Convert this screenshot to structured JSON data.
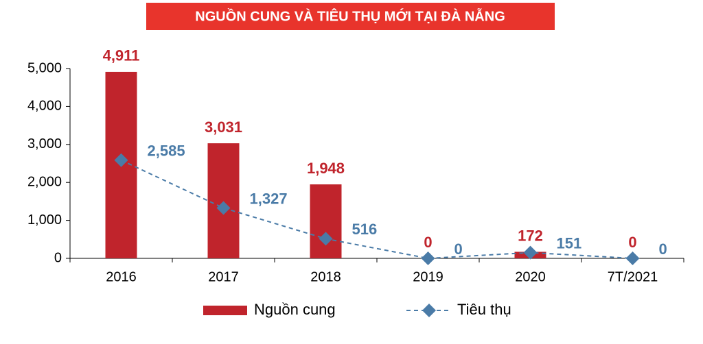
{
  "chart_data": {
    "type": "bar",
    "title": "NGUỒN CUNG VÀ TIÊU THỤ MỚI TẠI ĐÀ NẴNG",
    "categories": [
      "2016",
      "2017",
      "2018",
      "2019",
      "2020",
      "7T/2021"
    ],
    "series": [
      {
        "name": "Nguồn cung",
        "type": "bar",
        "color": "#c0242c",
        "values": [
          4911,
          3031,
          1948,
          0,
          172,
          0
        ],
        "value_labels": [
          "4,911",
          "3,031",
          "1,948",
          "0",
          "172",
          "0"
        ]
      },
      {
        "name": "Tiêu thụ",
        "type": "line",
        "color": "#4a7ba7",
        "values": [
          2585,
          1327,
          516,
          0,
          151,
          0
        ],
        "value_labels": [
          "2,585",
          "1,327",
          "516",
          "0",
          "151",
          "0"
        ]
      }
    ],
    "ylim": [
      0,
      5000
    ],
    "yticks": [
      0,
      {
        "value": 1000,
        "label": "1,000"
      },
      {
        "value": 2000,
        "label": "2,000"
      },
      {
        "value": 3000,
        "label": "3,000"
      },
      {
        "value": 4000,
        "label": "4,000"
      },
      {
        "value": 5000,
        "label": "5,000"
      }
    ],
    "legend": "bottom"
  }
}
